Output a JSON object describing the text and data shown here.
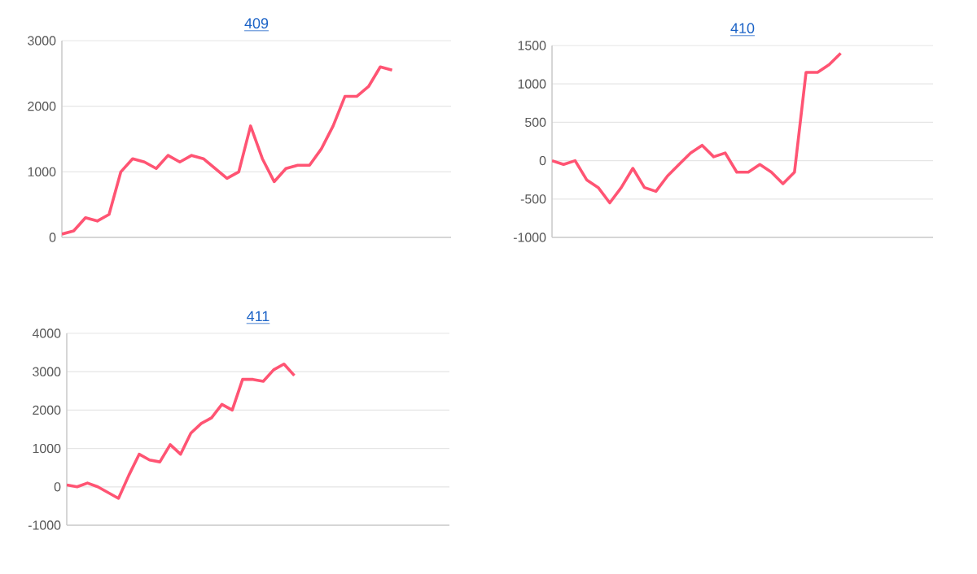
{
  "chart_data": [
    {
      "type": "line",
      "title": "409",
      "color": "#ff5473",
      "grid": "y",
      "tick_labels": "y",
      "ylim": [
        0,
        3000
      ],
      "yticks": [
        0,
        1000,
        2000,
        3000
      ],
      "categories": [
        null,
        null,
        null,
        null,
        null,
        null,
        null,
        null,
        null,
        null,
        null,
        null,
        null,
        null,
        null,
        null,
        null,
        null,
        null,
        null,
        null,
        null,
        null,
        null,
        null,
        null,
        null,
        null,
        null,
        null,
        null,
        null,
        null,
        null
      ],
      "values": [
        50,
        100,
        300,
        250,
        350,
        1000,
        1200,
        1150,
        1050,
        1250,
        1150,
        1250,
        1200,
        1050,
        900,
        1000,
        1700,
        1200,
        850,
        1050,
        1100,
        1100,
        1350,
        1700,
        2150,
        2150,
        2300,
        2600,
        2550,
        null,
        null,
        null,
        null,
        null
      ]
    },
    {
      "type": "line",
      "title": "410",
      "color": "#ff5473",
      "grid": "y",
      "tick_labels": "y",
      "ylim": [
        -1000,
        1500
      ],
      "yticks": [
        -1000,
        -500,
        0,
        500,
        1000,
        1500
      ],
      "categories": [
        null,
        null,
        null,
        null,
        null,
        null,
        null,
        null,
        null,
        null,
        null,
        null,
        null,
        null,
        null,
        null,
        null,
        null,
        null,
        null,
        null,
        null,
        null,
        null,
        null,
        null,
        null,
        null,
        null,
        null,
        null,
        null,
        null,
        null
      ],
      "values": [
        0,
        -50,
        0,
        -250,
        -350,
        -550,
        -350,
        -100,
        -350,
        -400,
        -200,
        -50,
        100,
        200,
        50,
        100,
        -150,
        -150,
        -50,
        -150,
        -300,
        -150,
        1150,
        1150,
        1250,
        1400,
        null,
        null,
        null,
        null,
        null,
        null,
        null,
        null
      ]
    },
    {
      "type": "line",
      "title": "411",
      "color": "#ff5473",
      "grid": "y",
      "tick_labels": "y",
      "ylim": [
        -1000,
        4000
      ],
      "yticks": [
        -1000,
        0,
        1000,
        2000,
        3000,
        4000
      ],
      "categories": [
        null,
        null,
        null,
        null,
        null,
        null,
        null,
        null,
        null,
        null,
        null,
        null,
        null,
        null,
        null,
        null,
        null,
        null,
        null,
        null,
        null,
        null,
        null,
        null,
        null,
        null,
        null,
        null,
        null,
        null,
        null,
        null,
        null,
        null,
        null,
        null,
        null,
        null
      ],
      "values": [
        50,
        0,
        100,
        0,
        -150,
        -300,
        300,
        850,
        700,
        650,
        1100,
        850,
        1400,
        1650,
        1800,
        2150,
        2000,
        2800,
        2800,
        2750,
        3050,
        3200,
        2900,
        null,
        null,
        null,
        null,
        null,
        null,
        null,
        null,
        null,
        null,
        null,
        null,
        null,
        null,
        null
      ]
    }
  ]
}
